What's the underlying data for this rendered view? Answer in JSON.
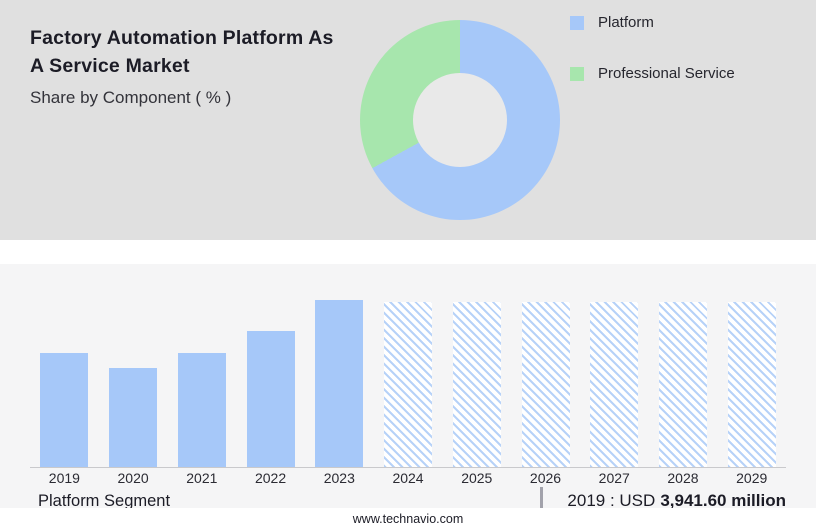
{
  "header": {
    "title_line1": "Factory Automation Platform As",
    "title_line2": "A Service Market",
    "subtitle": "Share by Component ( % )"
  },
  "colors": {
    "platform_blue": "#a6c8f9",
    "service_green": "#a7e6ad",
    "forecast_hatch_blue": "#b7d2f8",
    "top_panel_bg": "#e0e0e0",
    "bottom_panel_bg": "#f5f5f6"
  },
  "legend": [
    {
      "label": "Platform",
      "color": "#a6c8f9"
    },
    {
      "label": "Professional Service",
      "color": "#a7e6ad"
    }
  ],
  "chart_data": [
    {
      "type": "pie",
      "title": "Share by Component ( % )",
      "labels": [
        "Platform",
        "Professional Service"
      ],
      "values": [
        67,
        33
      ],
      "colors": [
        "#a6c8f9",
        "#a7e6ad"
      ],
      "donut": true,
      "legend_position": "right"
    },
    {
      "type": "bar",
      "title": "Platform Segment",
      "categories": [
        "2019",
        "2020",
        "2021",
        "2022",
        "2023",
        "2024",
        "2025",
        "2026",
        "2027",
        "2028",
        "2029"
      ],
      "values": [
        3941.6,
        3400,
        3920,
        4680,
        5760,
        5690,
        5690,
        5690,
        5690,
        5690,
        5690
      ],
      "ylim": [
        0,
        6200
      ],
      "bar_color": "#a6c8f9",
      "forecast_from": "2024",
      "forecast_style": "hatched",
      "grid": false,
      "annotation": "2019 : USD 3,941.60 million"
    }
  ],
  "footer": {
    "segment_label": "Platform Segment",
    "stat_prefix": "2019 : USD",
    "stat_value": "3,941.60 million",
    "website": "www.technavio.com"
  }
}
